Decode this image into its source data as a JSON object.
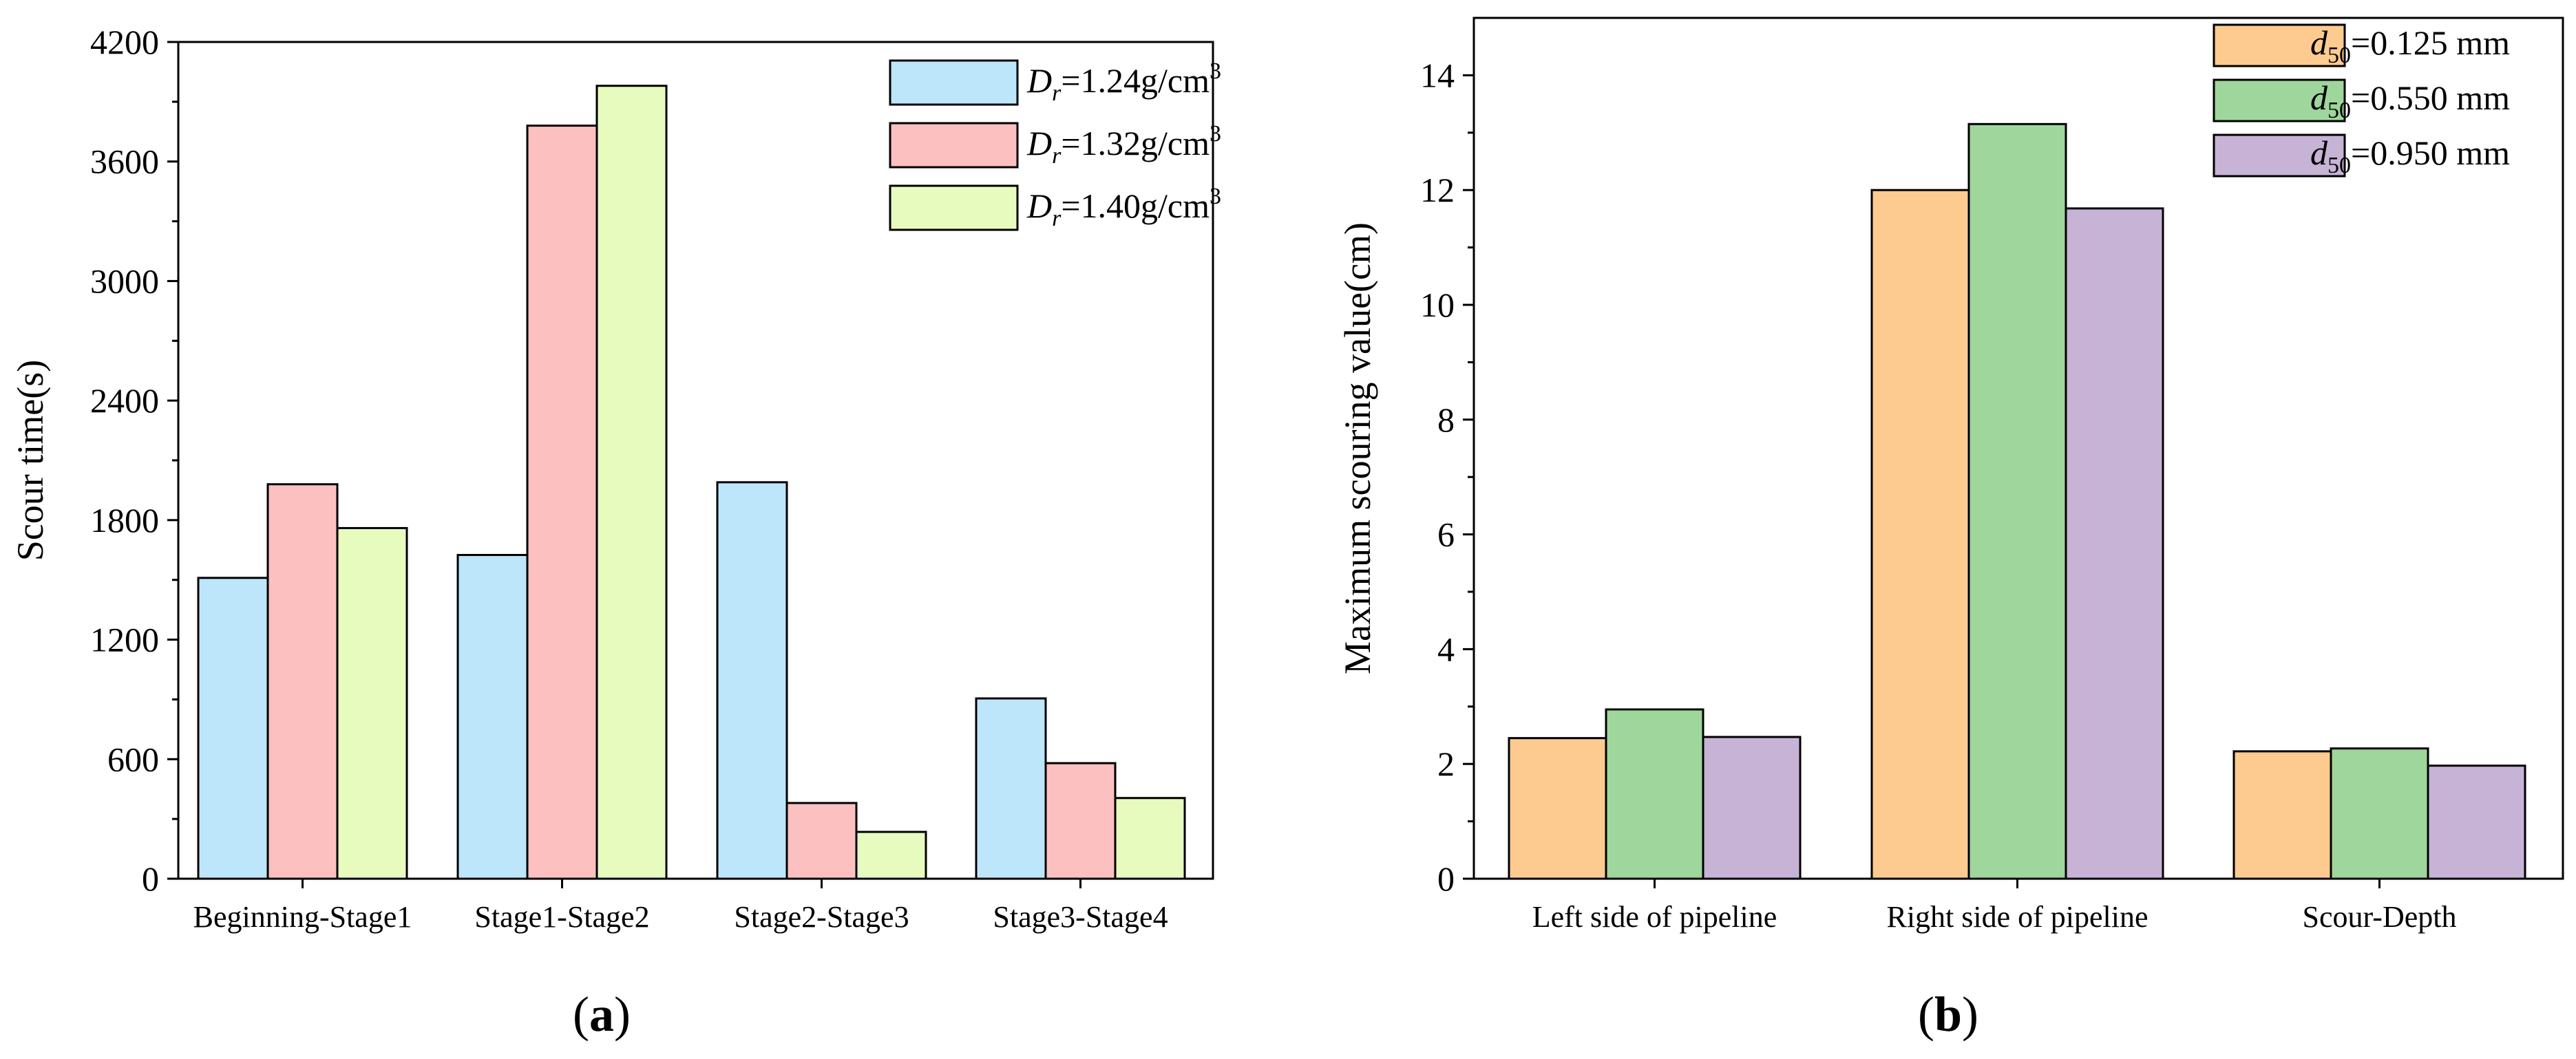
{
  "chart_data": [
    {
      "type": "bar",
      "panel_label": "a",
      "title": "",
      "xlabel": "",
      "ylabel": "Scour time(s)",
      "ylim": [
        0,
        4200
      ],
      "yticks": [
        0,
        600,
        1200,
        1800,
        2400,
        3000,
        3600,
        4200
      ],
      "categories": [
        "Beginning-Stage1",
        "Stage1-Stage2",
        "Stage2-Stage3",
        "Stage3-Stage4"
      ],
      "legend_position": "top-right",
      "series": [
        {
          "name": "D_r=1.24g/cm^3",
          "legend": {
            "var": "D",
            "sub": "r",
            "value": "=1.24g/cm",
            "sup": "3"
          },
          "color": "#bde6fb",
          "values": [
            1510,
            1625,
            1990,
            905
          ]
        },
        {
          "name": "D_r=1.32g/cm^3",
          "legend": {
            "var": "D",
            "sub": "r",
            "value": "=1.32g/cm",
            "sup": "3"
          },
          "color": "#fdc0c0",
          "values": [
            1980,
            3780,
            380,
            580
          ]
        },
        {
          "name": "D_r=1.40g/cm^3",
          "legend": {
            "var": "D",
            "sub": "r",
            "value": "=1.40g/cm",
            "sup": "3"
          },
          "color": "#e8fbbf",
          "values": [
            1760,
            3980,
            235,
            405
          ]
        }
      ]
    },
    {
      "type": "bar",
      "panel_label": "b",
      "title": "",
      "xlabel": "",
      "ylabel": "Maximum scouring value(cm)",
      "ylim": [
        0,
        15
      ],
      "yticks": [
        0,
        2,
        4,
        6,
        8,
        10,
        12,
        14
      ],
      "categories": [
        "Left side of pipeline",
        "Right side of pipeline",
        "Scour-Depth"
      ],
      "legend_position": "top-right",
      "series": [
        {
          "name": "d50=0.125 mm",
          "legend": {
            "var": "d",
            "sub": "50",
            "value": "=0.125 mm"
          },
          "color": "#fdcb8f",
          "values": [
            2.45,
            12.0,
            2.22
          ]
        },
        {
          "name": "d50=0.550 mm",
          "legend": {
            "var": "d",
            "sub": "50",
            "value": "=0.550 mm"
          },
          "color": "#9fd69b",
          "values": [
            2.95,
            13.15,
            2.27
          ]
        },
        {
          "name": "d50=0.950 mm",
          "legend": {
            "var": "d",
            "sub": "50",
            "value": "=0.950 mm"
          },
          "color": "#c6b3d6",
          "values": [
            2.47,
            11.68,
            1.97
          ]
        }
      ]
    }
  ]
}
